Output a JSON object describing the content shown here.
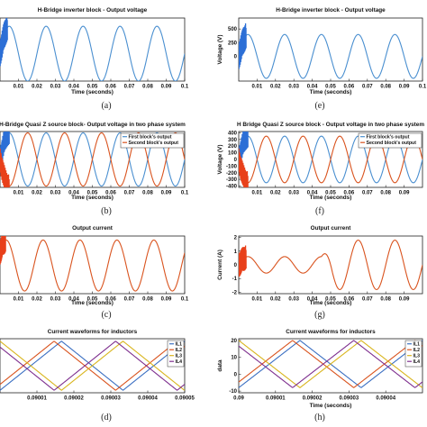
{
  "chart_data": [
    {
      "id": "a",
      "type": "line",
      "caption": "(a)",
      "title": "H-Bridge inverter block - Output voltage",
      "xlabel": "Time (seconds)",
      "ylabel": "",
      "xlim": [
        0,
        0.1
      ],
      "ylim": [
        -1,
        1.3
      ],
      "xticks": [
        "0.01",
        "0.02",
        "0.03",
        "0.04",
        "0.05",
        "0.06",
        "0.07",
        "0.08",
        "0.09",
        "0.1"
      ],
      "xtick_values": [
        0.01,
        0.02,
        0.03,
        0.04,
        0.05,
        0.06,
        0.07,
        0.08,
        0.09,
        0.1
      ],
      "yticks": [],
      "series": [
        {
          "name": "",
          "color": "#4a8fd0",
          "freq_hz": 50,
          "amplitude": 1,
          "phase_deg": 0,
          "offset": 0,
          "transient_to": 0.004,
          "transient_color": "#2c6fd6"
        }
      ]
    },
    {
      "id": "e",
      "type": "line",
      "caption": "(e)",
      "title": "H-Bridge inverter block - Output voltage",
      "xlabel": "Time (seconds)",
      "ylabel": "Voltage (V)",
      "xlim": [
        0,
        0.1
      ],
      "ylim": [
        -450,
        700
      ],
      "xticks": [
        "0.01",
        "0.02",
        "0.03",
        "0.04",
        "0.05",
        "0.06",
        "0.07",
        "0.08",
        "0.09",
        "0.1"
      ],
      "xtick_values": [
        0.01,
        0.02,
        0.03,
        0.04,
        0.05,
        0.06,
        0.07,
        0.08,
        0.09,
        0.1
      ],
      "yticks": [
        "0",
        "250",
        "500"
      ],
      "ytick_values": [
        0,
        250,
        500
      ],
      "series": [
        {
          "name": "",
          "color": "#4a8fd0",
          "freq_hz": 50,
          "amplitude": 400,
          "phase_deg": 0,
          "offset": 0,
          "transient_to": 0.004,
          "transient_color": "#2c6fd6"
        }
      ]
    },
    {
      "id": "b",
      "type": "line",
      "caption": "(b)",
      "title": "H-Bridge Quasi Z source block- Output voltage in two phase system",
      "xlabel": "Time (seconds)",
      "ylabel": "",
      "xlim": [
        0,
        0.1
      ],
      "ylim": [
        -1.05,
        1.05
      ],
      "xticks": [
        "0.01",
        "0.02",
        "0.03",
        "0.04",
        "0.05",
        "0.06",
        "0.07",
        "0.08",
        "0.09",
        "0.1"
      ],
      "xtick_values": [
        0.01,
        0.02,
        0.03,
        0.04,
        0.05,
        0.06,
        0.07,
        0.08,
        0.09,
        0.1
      ],
      "yticks": [],
      "legend": {
        "position": "top-right"
      },
      "series": [
        {
          "name": "First block's output",
          "color": "#4a8fd0",
          "freq_hz": 50,
          "amplitude": 1,
          "phase_deg": 0,
          "offset": 0,
          "transient_to": 0.005,
          "transient_color": "#2c6fd6"
        },
        {
          "name": "Second block's output",
          "color": "#d9531e",
          "freq_hz": 50,
          "amplitude": 1,
          "phase_deg": 180,
          "offset": 0,
          "transient_to": 0.005,
          "transient_color": "#e8401a"
        }
      ]
    },
    {
      "id": "f",
      "type": "line",
      "caption": "(f)",
      "title": "H Bridge Quasi Z source block - Output voltage in two phase system",
      "xlabel": "Time (seconds)",
      "ylabel": "Voltage (V)",
      "xlim": [
        0,
        0.1
      ],
      "ylim": [
        -420,
        420
      ],
      "xticks": [
        "0.01",
        "0.02",
        "0.03",
        "0.04",
        "0.05",
        "0.06",
        "0.07",
        "0.08",
        "0.09"
      ],
      "xtick_values": [
        0.01,
        0.02,
        0.03,
        0.04,
        0.05,
        0.06,
        0.07,
        0.08,
        0.09
      ],
      "yticks": [
        "400",
        "300",
        "200",
        "100",
        "0",
        "-100",
        "-200",
        "-300",
        "-400"
      ],
      "ytick_values": [
        400,
        300,
        200,
        100,
        0,
        -100,
        -200,
        -300,
        -400
      ],
      "legend": {
        "position": "top-right"
      },
      "series": [
        {
          "name": "First block's output",
          "color": "#4a8fd0",
          "freq_hz": 50,
          "amplitude": 350,
          "phase_deg": 0,
          "offset": 0,
          "transient_to": 0.005,
          "transient_color": "#2c6fd6"
        },
        {
          "name": "Second block's output",
          "color": "#d9531e",
          "freq_hz": 50,
          "amplitude": 350,
          "phase_deg": 180,
          "offset": 0,
          "transient_to": 0.005,
          "transient_color": "#e8401a"
        }
      ]
    },
    {
      "id": "c",
      "type": "line",
      "caption": "(c)",
      "title": "Output current",
      "xlabel": "Time (seconds)",
      "ylabel": "",
      "xlim": [
        0,
        0.1
      ],
      "ylim": [
        -1.05,
        1.1
      ],
      "xticks": [
        "0.01",
        "0.02",
        "0.03",
        "0.04",
        "0.05",
        "0.06",
        "0.07",
        "0.08",
        "0.09",
        "0.1"
      ],
      "xtick_values": [
        0.01,
        0.02,
        0.03,
        0.04,
        0.05,
        0.06,
        0.07,
        0.08,
        0.09,
        0.1
      ],
      "yticks": [],
      "series": [
        {
          "name": "",
          "color": "#d9531e",
          "freq_hz": 50,
          "amplitude": 0.95,
          "phase_deg": 30,
          "offset": 0,
          "transient_to": 0.003,
          "transient_color": "#e8401a"
        }
      ]
    },
    {
      "id": "g",
      "type": "line",
      "caption": "(g)",
      "title": "Output current",
      "xlabel": "Time (seconds)",
      "ylabel": "Current (A)",
      "xlim": [
        0,
        0.1
      ],
      "ylim": [
        -2.1,
        2.1
      ],
      "xticks": [
        "0.01",
        "0.02",
        "0.03",
        "0.04",
        "0.05",
        "0.06",
        "0.07",
        "0.08",
        "0.09"
      ],
      "xtick_values": [
        0.01,
        0.02,
        0.03,
        0.04,
        0.05,
        0.06,
        0.07,
        0.08,
        0.09
      ],
      "yticks": [
        "2",
        "1",
        "0",
        "-1",
        "-2"
      ],
      "ytick_values": [
        2,
        1,
        0,
        -1,
        -2
      ],
      "series": [
        {
          "name": "",
          "color": "#d9531e",
          "freq_hz": 50,
          "amplitude": 0.6,
          "phase_deg": 0,
          "offset": 0,
          "transient_to": 0.004,
          "transient_color": "#e8401a",
          "step_at": 0.045,
          "amplitude_after": 1.8
        }
      ]
    },
    {
      "id": "d",
      "type": "line",
      "caption": "(d)",
      "title": "Current waveforms for inductors",
      "xlabel": "",
      "ylabel": "",
      "xlim": [
        0.09,
        0.09005
      ],
      "ylim": [
        -1.1,
        1.1
      ],
      "xticks": [
        "0.09001",
        "0.09002",
        "0.09003",
        "0.09004",
        "0.09005"
      ],
      "xtick_values": [
        0.09001,
        0.09002,
        0.09003,
        0.09004,
        0.09005
      ],
      "yticks": [],
      "legend": {
        "position": "top-right"
      },
      "series": [
        {
          "name": "IL1",
          "color": "#3b6fc2",
          "wave": "triangle",
          "period": 3.33e-05,
          "phase": 0.0
        },
        {
          "name": "IL2",
          "color": "#d9531e",
          "wave": "triangle",
          "period": 3.33e-05,
          "phase": 0.06
        },
        {
          "name": "IL3",
          "color": "#d9b51e",
          "wave": "triangle",
          "period": 3.33e-05,
          "phase": 0.5
        },
        {
          "name": "IL4",
          "color": "#7e2f8e",
          "wave": "triangle",
          "period": 3.33e-05,
          "phase": 0.56
        }
      ]
    },
    {
      "id": "h",
      "type": "line",
      "caption": "(h)",
      "title": "Current waveforms for inductors",
      "xlabel": "Time (seconds)",
      "ylabel": "data",
      "xlim": [
        0.09,
        0.09005
      ],
      "ylim": [
        -11,
        21
      ],
      "xticks": [
        "0.09",
        "0.09001",
        "0.09002",
        "0.09003",
        "0.09004"
      ],
      "xtick_values": [
        0.09,
        0.09001,
        0.09002,
        0.09003,
        0.09004
      ],
      "yticks": [
        "20",
        "10",
        "0",
        "-10"
      ],
      "ytick_values": [
        20,
        10,
        0,
        -10
      ],
      "legend": {
        "position": "top-right"
      },
      "series": [
        {
          "name": "IL1",
          "color": "#3b6fc2",
          "wave": "triangle",
          "period": 3.33e-05,
          "phase": 0.0,
          "min": -8,
          "max": 20
        },
        {
          "name": "IL2",
          "color": "#d9531e",
          "wave": "triangle",
          "period": 3.33e-05,
          "phase": 0.06,
          "min": -8,
          "max": 20
        },
        {
          "name": "IL3",
          "color": "#d9b51e",
          "wave": "triangle",
          "period": 3.33e-05,
          "phase": 0.5,
          "min": -8,
          "max": 20
        },
        {
          "name": "IL4",
          "color": "#7e2f8e",
          "wave": "triangle",
          "period": 3.33e-05,
          "phase": 0.56,
          "min": -8,
          "max": 20
        }
      ]
    }
  ]
}
